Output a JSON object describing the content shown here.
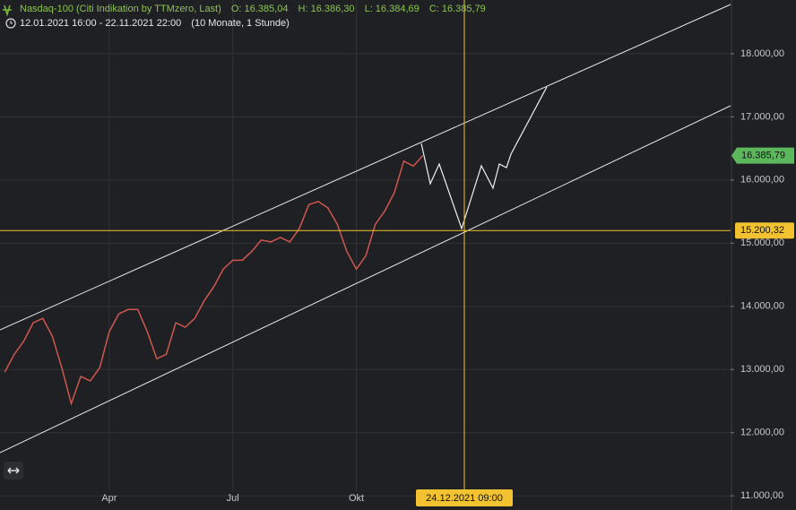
{
  "chart_data": {
    "type": "line",
    "header": {
      "title": "Nasdaq-100 (Citi Indikation by TTMzero, Last)",
      "open": "O: 16.385,04",
      "high": "H: 16.386,30",
      "low": "L: 16.384,69",
      "close": "C: 16.385,79",
      "range": "12.01.2021 16:00 - 22.11.2021 22:00",
      "span": "(10 Monate, 1 Stunde)"
    },
    "categories": [
      null,
      null,
      null,
      null,
      null,
      null,
      null,
      null,
      null,
      null,
      null,
      "Apr",
      null,
      null,
      null,
      null,
      null,
      null,
      null,
      null,
      null,
      null,
      null,
      null,
      "Jul",
      null,
      null,
      null,
      null,
      null,
      null,
      null,
      null,
      null,
      null,
      null,
      null,
      "Okt",
      null,
      null,
      null,
      null,
      null,
      null,
      null
    ],
    "values": [
      12960,
      13240,
      13450,
      13740,
      13810,
      13530,
      13030,
      12460,
      12890,
      12820,
      13030,
      13600,
      13880,
      13950,
      13950,
      13600,
      13170,
      13240,
      13740,
      13670,
      13810,
      14090,
      14310,
      14590,
      14730,
      14730,
      14870,
      15050,
      15020,
      15090,
      15020,
      15230,
      15610,
      15660,
      15560,
      15300,
      14870,
      14590,
      14800,
      15300,
      15510,
      15800,
      16300,
      16220,
      16385.79
    ],
    "color": "#d0574f",
    "ylim": [
      10790,
      18850
    ],
    "yticks": [
      {
        "value": 11000,
        "label": "11.000,00"
      },
      {
        "value": 12000,
        "label": "12.000,00"
      },
      {
        "value": 13000,
        "label": "13.000,00"
      },
      {
        "value": 14000,
        "label": "14.000,00"
      },
      {
        "value": 15000,
        "label": "15.000,00"
      },
      {
        "value": 16000,
        "label": "16.000,00"
      },
      {
        "value": 17000,
        "label": "17.000,00"
      },
      {
        "value": 18000,
        "label": "18.000,00"
      }
    ],
    "grid": true,
    "last_price": {
      "value": 16385.79,
      "label": "16.385,79",
      "color": "#5cb85c"
    },
    "crosshair": {
      "value": 15200.32,
      "label": "15.200,32",
      "date": "24.12.2021 09:00",
      "color": "#f2c230"
    }
  }
}
